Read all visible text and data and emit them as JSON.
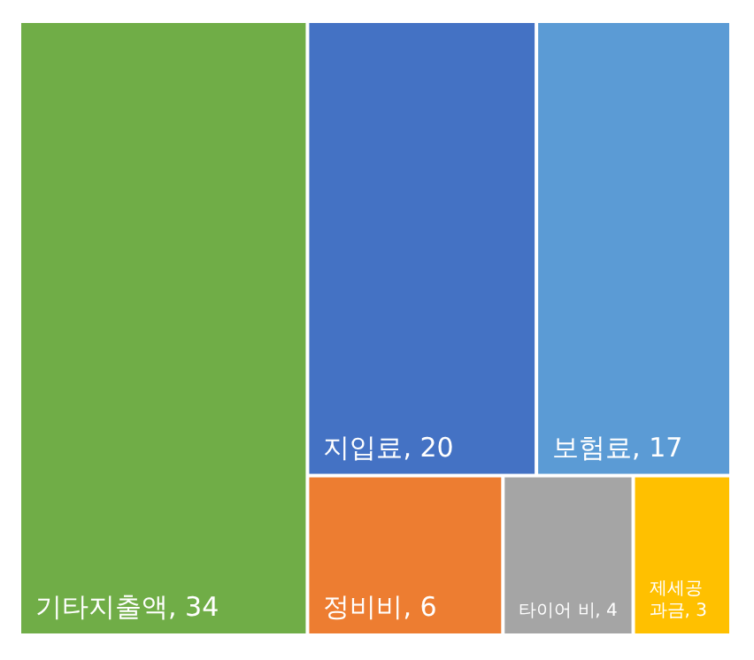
{
  "chart_data": {
    "type": "other",
    "categories": [
      "기타지출액",
      "지입료",
      "보험료",
      "정비비",
      "타이어 비",
      "제세공과금"
    ],
    "values": [
      34,
      20,
      17,
      6,
      4,
      3
    ],
    "colors": [
      "#70ad47",
      "#4472c4",
      "#5b9bd5",
      "#ed7d31",
      "#a5a5a5",
      "#ffc000"
    ],
    "value_labels": [
      ", 34",
      ", 20",
      ", 17",
      ", 6",
      ", 4",
      ", 3"
    ]
  }
}
